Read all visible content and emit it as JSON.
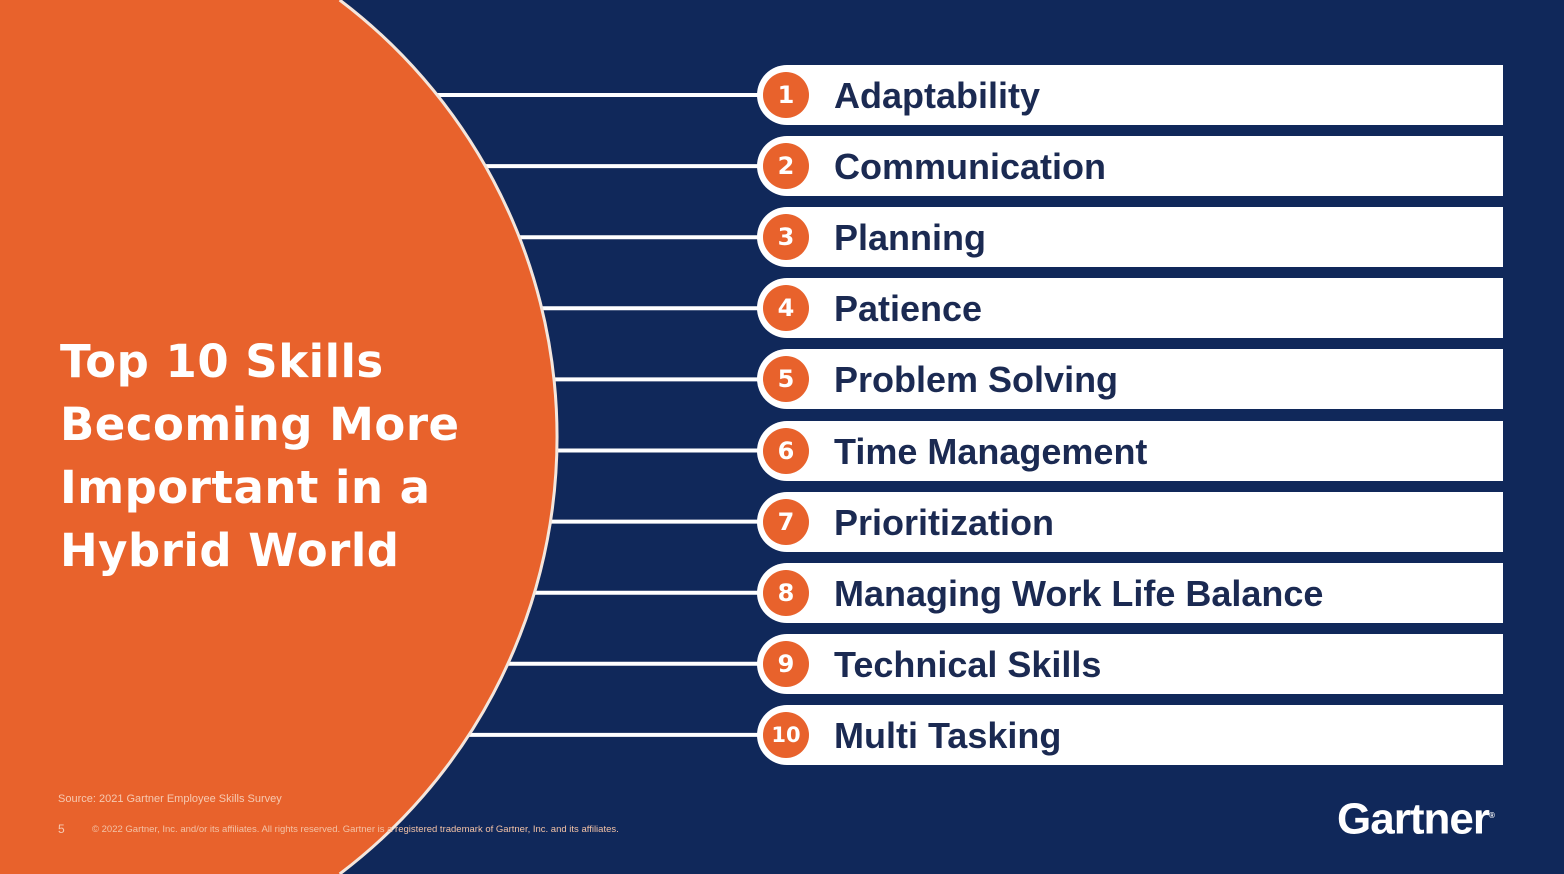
{
  "title": "Top 10 Skills Becoming More Important in a Hybrid World",
  "skills": [
    {
      "rank": "1",
      "label": "Adaptability"
    },
    {
      "rank": "2",
      "label": "Communication"
    },
    {
      "rank": "3",
      "label": "Planning"
    },
    {
      "rank": "4",
      "label": "Patience"
    },
    {
      "rank": "5",
      "label": "Problem Solving"
    },
    {
      "rank": "6",
      "label": "Time Management"
    },
    {
      "rank": "7",
      "label": "Prioritization"
    },
    {
      "rank": "8",
      "label": "Managing Work Life Balance"
    },
    {
      "rank": "9",
      "label": "Technical Skills"
    },
    {
      "rank": "10",
      "label": "Multi Tasking"
    }
  ],
  "footer": {
    "source": "Source: 2021 Gartner Employee Skills Survey",
    "page_number": "5",
    "copyright": "© 2022 Gartner, Inc. and/or its affiliates. All rights reserved. Gartner is a registered trademark of Gartner, Inc. and its affiliates."
  },
  "logo": "Gartner",
  "colors": {
    "navy": "#10285a",
    "orange": "#e8622c",
    "text": "#1b2a52"
  }
}
